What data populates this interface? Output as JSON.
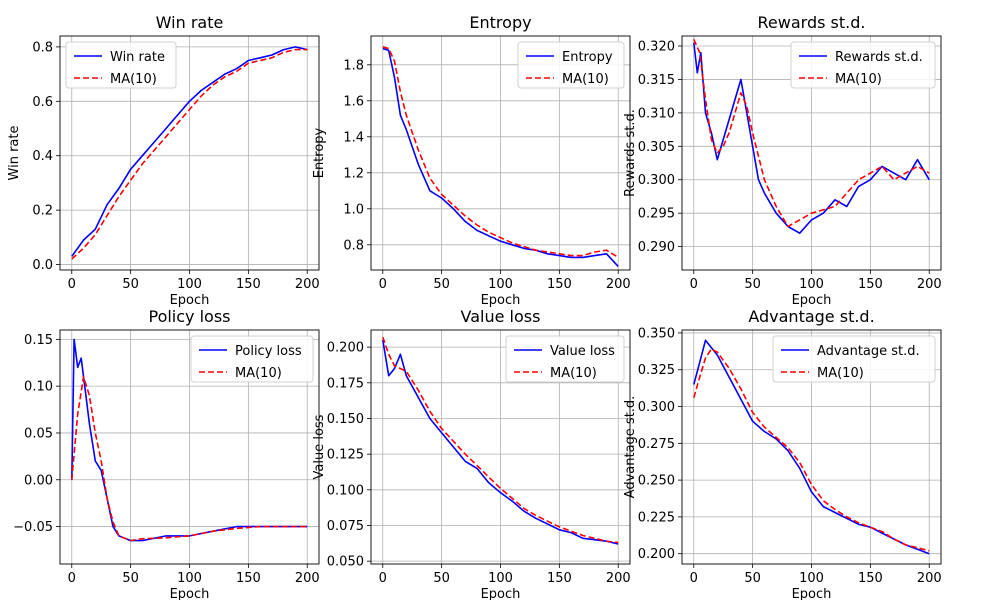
{
  "chart_data": [
    {
      "type": "line",
      "title": "Win rate",
      "xlabel": "Epoch",
      "ylabel": "Win rate",
      "xlim": [
        -10,
        210
      ],
      "ylim": [
        -0.02,
        0.84
      ],
      "xticks": [
        "0",
        "50",
        "100",
        "150",
        "200"
      ],
      "yticks": [
        "0.0",
        "0.2",
        "0.4",
        "0.6",
        "0.8"
      ],
      "grid": true,
      "legend_position": "upper-left",
      "series": [
        {
          "name": "Win rate",
          "color": "#0000ff",
          "style": "solid",
          "x": [
            0,
            10,
            20,
            30,
            40,
            50,
            60,
            70,
            80,
            90,
            100,
            110,
            120,
            130,
            140,
            150,
            160,
            170,
            180,
            190,
            200
          ],
          "y": [
            0.03,
            0.09,
            0.13,
            0.22,
            0.28,
            0.35,
            0.4,
            0.45,
            0.5,
            0.55,
            0.6,
            0.64,
            0.67,
            0.7,
            0.72,
            0.75,
            0.76,
            0.77,
            0.79,
            0.8,
            0.79
          ]
        },
        {
          "name": "MA(10)",
          "color": "#ff0000",
          "style": "dashed",
          "x": [
            0,
            10,
            20,
            30,
            40,
            50,
            60,
            70,
            80,
            90,
            100,
            110,
            120,
            130,
            140,
            150,
            160,
            170,
            180,
            190,
            200
          ],
          "y": [
            0.02,
            0.06,
            0.11,
            0.18,
            0.25,
            0.31,
            0.37,
            0.42,
            0.47,
            0.52,
            0.57,
            0.62,
            0.66,
            0.69,
            0.71,
            0.74,
            0.75,
            0.76,
            0.78,
            0.79,
            0.79
          ]
        }
      ]
    },
    {
      "type": "line",
      "title": "Entropy",
      "xlabel": "Epoch",
      "ylabel": "Entropy",
      "xlim": [
        -10,
        210
      ],
      "ylim": [
        0.66,
        1.96
      ],
      "xticks": [
        "0",
        "50",
        "100",
        "150",
        "200"
      ],
      "yticks": [
        "0.8",
        "1.0",
        "1.2",
        "1.4",
        "1.6",
        "1.8"
      ],
      "grid": true,
      "legend_position": "upper-right",
      "series": [
        {
          "name": "Entropy",
          "color": "#0000ff",
          "style": "solid",
          "x": [
            0,
            5,
            10,
            15,
            20,
            30,
            40,
            50,
            60,
            70,
            80,
            90,
            100,
            110,
            120,
            130,
            140,
            150,
            160,
            170,
            180,
            190,
            200
          ],
          "y": [
            1.89,
            1.88,
            1.73,
            1.52,
            1.44,
            1.25,
            1.1,
            1.06,
            1.0,
            0.93,
            0.88,
            0.85,
            0.82,
            0.8,
            0.78,
            0.77,
            0.75,
            0.74,
            0.73,
            0.73,
            0.74,
            0.75,
            0.68
          ]
        },
        {
          "name": "MA(10)",
          "color": "#ff0000",
          "style": "dashed",
          "x": [
            0,
            5,
            10,
            15,
            20,
            30,
            40,
            50,
            60,
            70,
            80,
            90,
            100,
            110,
            120,
            130,
            140,
            150,
            160,
            170,
            180,
            190,
            200
          ],
          "y": [
            1.9,
            1.89,
            1.82,
            1.65,
            1.52,
            1.33,
            1.17,
            1.08,
            1.02,
            0.96,
            0.91,
            0.87,
            0.84,
            0.81,
            0.79,
            0.77,
            0.76,
            0.75,
            0.74,
            0.74,
            0.76,
            0.77,
            0.73
          ]
        }
      ]
    },
    {
      "type": "line",
      "title": "Rewards st.d.",
      "xlabel": "Epoch",
      "ylabel": "Rewards st.d.",
      "xlim": [
        -10,
        210
      ],
      "ylim": [
        0.2865,
        0.3215
      ],
      "xticks": [
        "0",
        "50",
        "100",
        "150",
        "200"
      ],
      "yticks": [
        "0.290",
        "0.295",
        "0.300",
        "0.305",
        "0.310",
        "0.315",
        "0.320"
      ],
      "grid": true,
      "legend_position": "upper-right",
      "series": [
        {
          "name": "Rewards st.d.",
          "color": "#0000ff",
          "style": "solid",
          "x": [
            0,
            3,
            6,
            10,
            15,
            20,
            25,
            30,
            35,
            40,
            45,
            50,
            55,
            60,
            70,
            80,
            90,
            100,
            110,
            120,
            130,
            140,
            150,
            160,
            170,
            180,
            190,
            200
          ],
          "y": [
            0.3205,
            0.316,
            0.319,
            0.31,
            0.307,
            0.303,
            0.306,
            0.309,
            0.312,
            0.315,
            0.31,
            0.305,
            0.3,
            0.298,
            0.295,
            0.293,
            0.292,
            0.294,
            0.295,
            0.297,
            0.296,
            0.299,
            0.3,
            0.302,
            0.301,
            0.3,
            0.303,
            0.3
          ]
        },
        {
          "name": "MA(10)",
          "color": "#ff0000",
          "style": "dashed",
          "x": [
            0,
            5,
            10,
            15,
            20,
            25,
            30,
            35,
            40,
            45,
            50,
            60,
            70,
            80,
            90,
            100,
            110,
            120,
            130,
            140,
            150,
            160,
            170,
            180,
            190,
            200
          ],
          "y": [
            0.321,
            0.319,
            0.312,
            0.306,
            0.304,
            0.305,
            0.307,
            0.31,
            0.313,
            0.311,
            0.307,
            0.3,
            0.296,
            0.293,
            0.294,
            0.295,
            0.2955,
            0.296,
            0.298,
            0.3,
            0.301,
            0.302,
            0.3,
            0.301,
            0.302,
            0.301
          ]
        }
      ]
    },
    {
      "type": "line",
      "title": "Policy loss",
      "xlabel": "Epoch",
      "ylabel": "",
      "xlim": [
        -10,
        210
      ],
      "ylim": [
        -0.09,
        0.16
      ],
      "xticks": [
        "0",
        "50",
        "100",
        "150",
        "200"
      ],
      "yticks": [
        "−0.05",
        "0.00",
        "0.05",
        "0.10",
        "0.15"
      ],
      "grid": true,
      "legend_position": "upper-right",
      "series": [
        {
          "name": "Policy loss",
          "color": "#0000ff",
          "style": "solid",
          "x": [
            0,
            2,
            5,
            8,
            12,
            15,
            20,
            25,
            30,
            35,
            40,
            50,
            60,
            80,
            100,
            120,
            140,
            160,
            180,
            200
          ],
          "y": [
            0.0,
            0.15,
            0.12,
            0.13,
            0.09,
            0.06,
            0.02,
            0.01,
            -0.02,
            -0.05,
            -0.06,
            -0.065,
            -0.065,
            -0.06,
            -0.06,
            -0.055,
            -0.05,
            -0.05,
            -0.05,
            -0.05
          ]
        },
        {
          "name": "MA(10)",
          "color": "#ff0000",
          "style": "dashed",
          "x": [
            0,
            5,
            10,
            15,
            20,
            25,
            30,
            35,
            40,
            50,
            60,
            80,
            100,
            120,
            140,
            160,
            180,
            200
          ],
          "y": [
            0.0,
            0.07,
            0.11,
            0.09,
            0.05,
            0.02,
            -0.02,
            -0.045,
            -0.06,
            -0.065,
            -0.063,
            -0.062,
            -0.06,
            -0.055,
            -0.052,
            -0.05,
            -0.05,
            -0.05
          ]
        }
      ]
    },
    {
      "type": "line",
      "title": "Value loss",
      "xlabel": "Epoch",
      "ylabel": "Value loss",
      "xlim": [
        -10,
        210
      ],
      "ylim": [
        0.048,
        0.212
      ],
      "xticks": [
        "0",
        "50",
        "100",
        "150",
        "200"
      ],
      "yticks": [
        "0.050",
        "0.075",
        "0.100",
        "0.125",
        "0.150",
        "0.175",
        "0.200"
      ],
      "grid": true,
      "legend_position": "upper-right",
      "series": [
        {
          "name": "Value loss",
          "color": "#0000ff",
          "style": "solid",
          "x": [
            0,
            5,
            10,
            15,
            20,
            30,
            40,
            50,
            60,
            70,
            80,
            90,
            100,
            110,
            120,
            130,
            140,
            150,
            160,
            170,
            180,
            190,
            200
          ],
          "y": [
            0.205,
            0.18,
            0.185,
            0.195,
            0.18,
            0.165,
            0.15,
            0.14,
            0.13,
            0.12,
            0.115,
            0.105,
            0.098,
            0.092,
            0.085,
            0.08,
            0.076,
            0.072,
            0.07,
            0.066,
            0.065,
            0.064,
            0.062
          ]
        },
        {
          "name": "MA(10)",
          "color": "#ff0000",
          "style": "dashed",
          "x": [
            0,
            5,
            10,
            20,
            30,
            40,
            50,
            60,
            70,
            80,
            90,
            100,
            110,
            120,
            130,
            140,
            150,
            160,
            170,
            180,
            190,
            200
          ],
          "y": [
            0.207,
            0.195,
            0.187,
            0.183,
            0.17,
            0.155,
            0.143,
            0.134,
            0.125,
            0.117,
            0.109,
            0.101,
            0.094,
            0.087,
            0.082,
            0.078,
            0.074,
            0.071,
            0.068,
            0.066,
            0.064,
            0.063
          ]
        }
      ]
    },
    {
      "type": "line",
      "title": "Advantage st.d.",
      "xlabel": "Epoch",
      "ylabel": "Advantage st.d.",
      "xlim": [
        -10,
        210
      ],
      "ylim": [
        0.193,
        0.352
      ],
      "xticks": [
        "0",
        "50",
        "100",
        "150",
        "200"
      ],
      "yticks": [
        "0.200",
        "0.225",
        "0.250",
        "0.275",
        "0.300",
        "0.325",
        "0.350"
      ],
      "grid": true,
      "legend_position": "upper-right",
      "series": [
        {
          "name": "Advantage st.d.",
          "color": "#0000ff",
          "style": "solid",
          "x": [
            0,
            5,
            10,
            15,
            20,
            30,
            40,
            50,
            60,
            70,
            80,
            90,
            100,
            110,
            120,
            130,
            140,
            150,
            160,
            170,
            180,
            190,
            200
          ],
          "y": [
            0.315,
            0.33,
            0.345,
            0.34,
            0.335,
            0.32,
            0.305,
            0.29,
            0.283,
            0.278,
            0.27,
            0.258,
            0.242,
            0.232,
            0.228,
            0.224,
            0.22,
            0.218,
            0.214,
            0.21,
            0.206,
            0.203,
            0.2
          ]
        },
        {
          "name": "MA(10)",
          "color": "#ff0000",
          "style": "dashed",
          "x": [
            0,
            5,
            10,
            15,
            20,
            30,
            40,
            50,
            60,
            70,
            80,
            90,
            100,
            110,
            120,
            130,
            140,
            150,
            160,
            170,
            180,
            190,
            200
          ],
          "y": [
            0.306,
            0.32,
            0.333,
            0.339,
            0.337,
            0.326,
            0.312,
            0.296,
            0.286,
            0.279,
            0.272,
            0.262,
            0.247,
            0.236,
            0.23,
            0.225,
            0.221,
            0.218,
            0.215,
            0.21,
            0.206,
            0.204,
            0.202
          ]
        }
      ]
    }
  ]
}
